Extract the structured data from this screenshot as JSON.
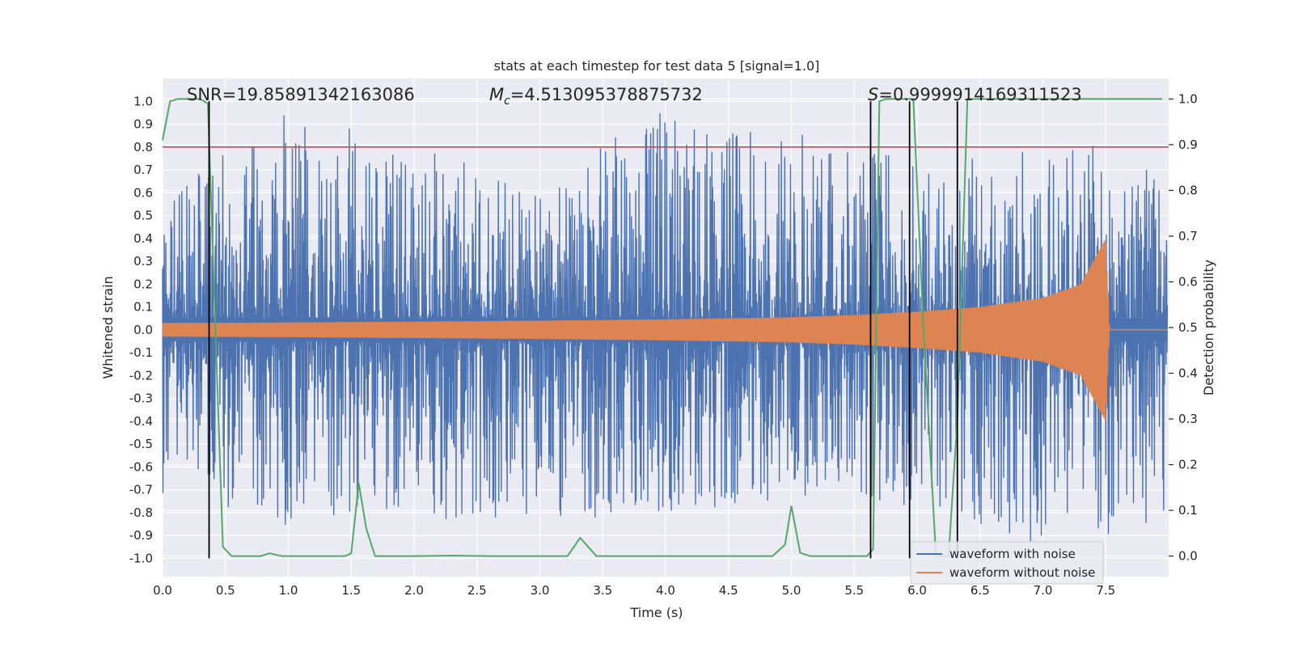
{
  "chart_data": {
    "type": "line",
    "title": "stats at each timestep for test data 5 [signal=1.0]",
    "xlabel": "Time (s)",
    "ylabel_left": "Whitened strain",
    "ylabel_right": "Detection probability",
    "xlim": [
      0.0,
      8.0
    ],
    "ylim_left": [
      -1.08,
      1.1
    ],
    "ylim_right": [
      -0.045,
      1.045
    ],
    "x_ticks": [
      "0.0",
      "0.5",
      "1.0",
      "1.5",
      "2.0",
      "2.5",
      "3.0",
      "3.5",
      "4.0",
      "4.5",
      "5.0",
      "5.5",
      "6.0",
      "6.5",
      "7.0",
      "7.5"
    ],
    "y_left_ticks": [
      "1.0",
      "0.9",
      "0.8",
      "0.7",
      "0.6",
      "0.5",
      "0.4",
      "0.3",
      "0.2",
      "0.1",
      "0.0",
      "-0.1",
      "-0.2",
      "-0.3",
      "-0.4",
      "-0.5",
      "-0.6",
      "-0.7",
      "-0.8",
      "-0.9",
      "-1.0"
    ],
    "y_right_ticks": [
      "1.0",
      "0.9",
      "0.8",
      "0.7",
      "0.6",
      "0.5",
      "0.4",
      "0.3",
      "0.2",
      "0.1",
      "0.0"
    ],
    "grid": true,
    "legend_position": "lower-right",
    "annotations": {
      "snr": "SNR=19.85891342163086",
      "mc_symbol": "M",
      "mc_sub": "c",
      "mc_value": "=4.513095378875732",
      "s_symbol": "S",
      "s_value": "=0.9999914169311523"
    },
    "threshold": {
      "value": 0.8,
      "color": "#c44e52"
    },
    "vertical_markers": [
      0.37,
      5.63,
      5.94,
      6.32
    ],
    "series": [
      {
        "name": "waveform with noise",
        "color": "#4c72b0",
        "axis": "left",
        "description_points": {
          "x": [
            0.0,
            1.0,
            2.0,
            3.0,
            4.0,
            5.0,
            6.0,
            7.0,
            7.5,
            8.0
          ],
          "envelope_upper": [
            0.6,
            0.97,
            0.8,
            0.65,
            0.97,
            0.87,
            0.75,
            0.79,
            0.9,
            0.6
          ],
          "envelope_lower": [
            -0.75,
            -0.86,
            -0.83,
            -0.83,
            -0.82,
            -0.74,
            -0.78,
            -0.95,
            -0.9,
            -0.82
          ]
        }
      },
      {
        "name": "waveform without noise",
        "color": "#dd8452",
        "axis": "left",
        "description_points": {
          "x": [
            0.0,
            1.0,
            2.0,
            3.0,
            4.0,
            5.0,
            5.5,
            6.0,
            6.5,
            7.0,
            7.3,
            7.5,
            7.53,
            8.0
          ],
          "amplitude": [
            0.03,
            0.032,
            0.036,
            0.04,
            0.046,
            0.055,
            0.065,
            0.08,
            0.1,
            0.14,
            0.2,
            0.4,
            0.0,
            0.0
          ]
        }
      },
      {
        "name": "",
        "color": "#55a868",
        "axis": "right",
        "x": [
          0.0,
          0.06,
          0.12,
          0.18,
          0.24,
          0.3,
          0.36,
          0.42,
          0.48,
          0.55,
          0.62,
          0.7,
          0.78,
          0.85,
          0.95,
          1.1,
          1.3,
          1.45,
          1.5,
          1.56,
          1.62,
          1.69,
          1.8,
          2.0,
          2.3,
          2.6,
          3.0,
          3.22,
          3.32,
          3.45,
          3.6,
          4.0,
          4.5,
          4.85,
          4.95,
          5.0,
          5.07,
          5.15,
          5.3,
          5.5,
          5.6,
          5.65,
          5.7,
          5.75,
          5.9,
          5.97,
          6.05,
          6.15,
          6.25,
          6.32,
          6.4,
          6.6,
          7.0,
          7.5,
          7.95
        ],
        "y": [
          0.91,
          0.995,
          1.0,
          1.0,
          1.0,
          1.0,
          0.99,
          0.5,
          0.02,
          0.0,
          0.0,
          0.0,
          0.0,
          0.006,
          0.0,
          0.0,
          0.0,
          0.0,
          0.006,
          0.16,
          0.06,
          0.0,
          0.0,
          0.0,
          0.001,
          0.0,
          0.0,
          0.0,
          0.04,
          0.0,
          0.0,
          0.0,
          0.0,
          0.0,
          0.025,
          0.11,
          0.007,
          0.0,
          0.0,
          0.0,
          0.0,
          0.015,
          0.995,
          1.0,
          1.0,
          1.0,
          0.5,
          0.0,
          0.0,
          0.3,
          1.0,
          1.0,
          1.0,
          1.0,
          1.0
        ]
      }
    ]
  }
}
